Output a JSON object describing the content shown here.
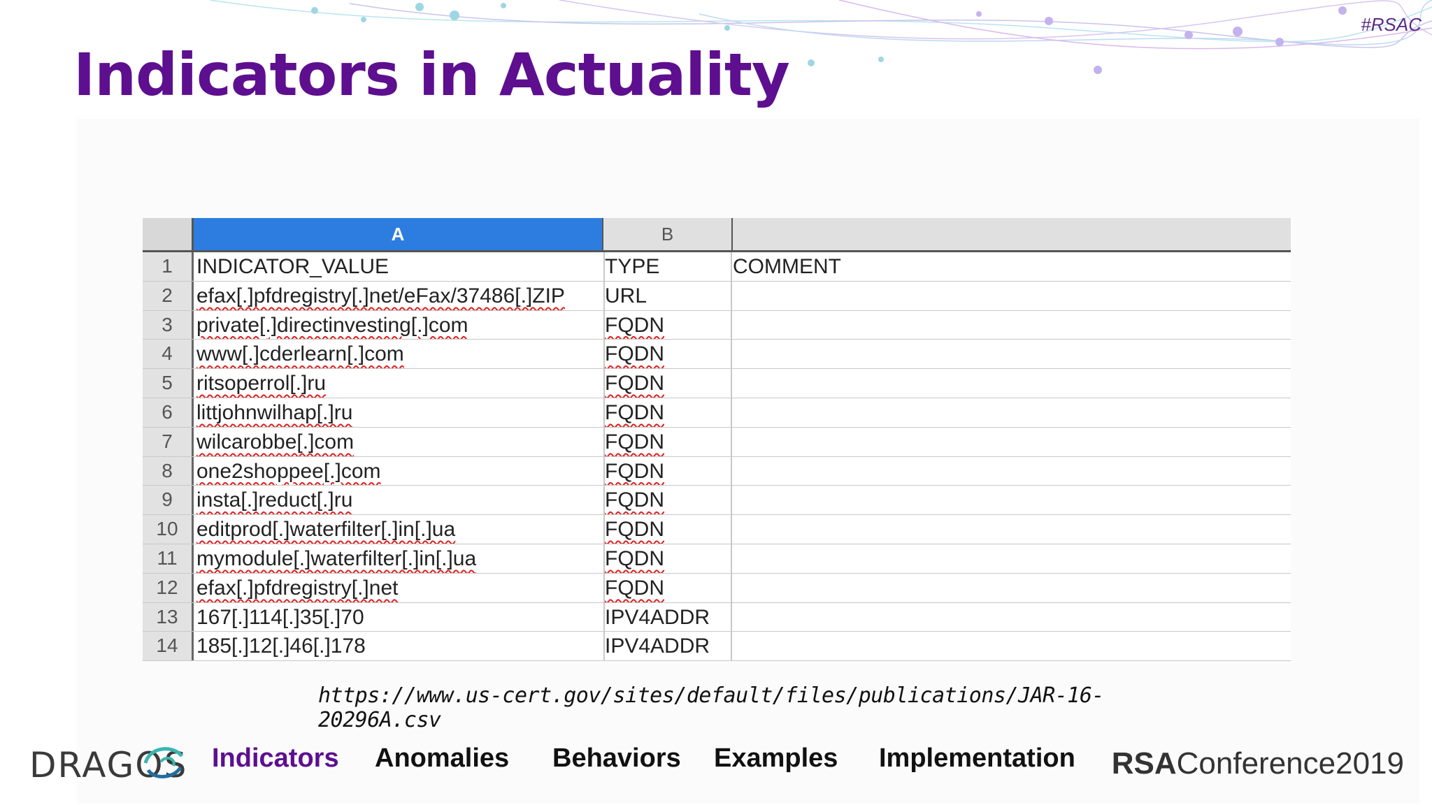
{
  "hashtag": "#RSAC",
  "title": "Indicators in Actuality",
  "sheet": {
    "col_headers": [
      "A",
      "B"
    ],
    "rows": [
      {
        "num": "1",
        "a": "INDICATOR_VALUE",
        "b": "TYPE",
        "c": "COMMENT"
      },
      {
        "num": "2",
        "a": "efax[.]pfdregistry[.]net/eFax/37486[.]ZIP",
        "b": "URL",
        "c": ""
      },
      {
        "num": "3",
        "a": "private[.]directinvesting[.]com",
        "b": "FQDN",
        "c": ""
      },
      {
        "num": "4",
        "a": "www[.]cderlearn[.]com",
        "b": "FQDN",
        "c": ""
      },
      {
        "num": "5",
        "a": "ritsoperrol[.]ru",
        "b": "FQDN",
        "c": ""
      },
      {
        "num": "6",
        "a": "littjohnwilhap[.]ru",
        "b": "FQDN",
        "c": ""
      },
      {
        "num": "7",
        "a": "wilcarobbe[.]com",
        "b": "FQDN",
        "c": ""
      },
      {
        "num": "8",
        "a": "one2shoppee[.]com",
        "b": "FQDN",
        "c": ""
      },
      {
        "num": "9",
        "a": "insta[.]reduct[.]ru",
        "b": "FQDN",
        "c": ""
      },
      {
        "num": "10",
        "a": "editprod[.]waterfilter[.]in[.]ua",
        "b": "FQDN",
        "c": ""
      },
      {
        "num": "11",
        "a": "mymodule[.]waterfilter[.]in[.]ua",
        "b": "FQDN",
        "c": ""
      },
      {
        "num": "12",
        "a": "efax[.]pfdregistry[.]net",
        "b": "FQDN",
        "c": ""
      },
      {
        "num": "13",
        "a": "167[.]114[.]35[.]70",
        "b": "IPV4ADDR",
        "c": ""
      },
      {
        "num": "14",
        "a": "185[.]12[.]46[.]178",
        "b": "IPV4ADDR",
        "c": ""
      }
    ]
  },
  "source_url": "https://www.us-cert.gov/sites/default/files/publications/JAR-16-20296A.csv",
  "footer": {
    "logo_text": "DRAGOS",
    "nav": [
      "Indicators",
      "Anomalies",
      "Behaviors",
      "Examples",
      "Implementation"
    ],
    "active_nav": "Indicators",
    "conference_brand": "RSA",
    "conference_name": "Conference2019"
  },
  "colors": {
    "title": "#5d0f8f",
    "selected_column": "#2d7de0",
    "spellcheck": "#e02020"
  }
}
